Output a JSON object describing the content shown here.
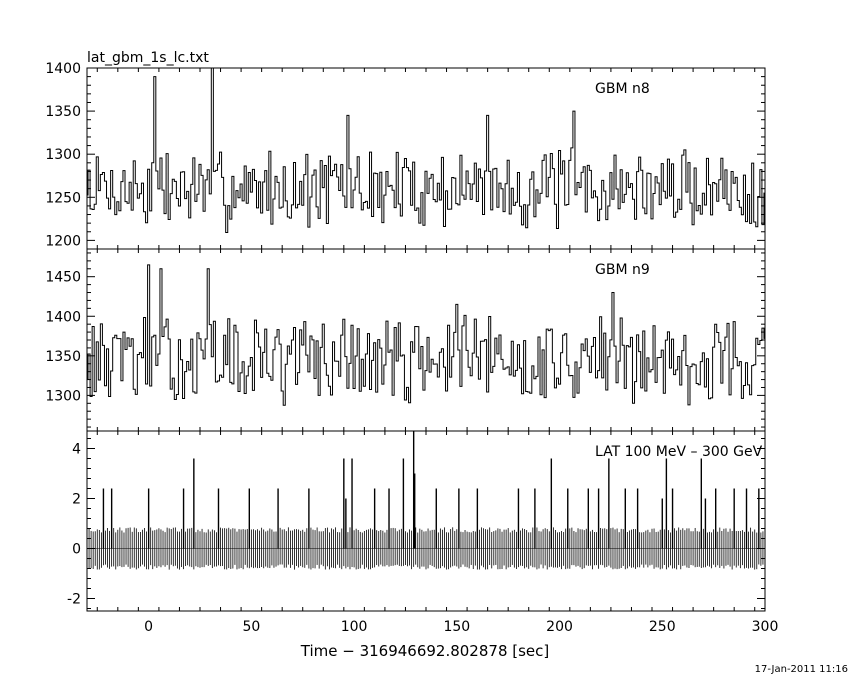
{
  "title": "lat_gbm_1s_lc.txt",
  "timestamp": "17-Jan-2011 11:16",
  "chart_data": {
    "type": "line",
    "xlabel": "Time − 316946692.802878 [sec]",
    "xlim": [
      -30,
      300
    ],
    "xticks": [
      0,
      50,
      100,
      150,
      200,
      250,
      300
    ],
    "panels": [
      {
        "name": "GBM n8",
        "ylim": [
          1190,
          1400
        ],
        "yticks": [
          1200,
          1250,
          1300,
          1350,
          1400
        ],
        "noise": {
          "base": 1260,
          "amp": 38,
          "seed": 7
        },
        "peaks": [
          {
            "x": 3,
            "value": 1390
          },
          {
            "x": 31,
            "value": 1400
          },
          {
            "x": 207,
            "value": 1350
          },
          {
            "x": 165,
            "value": 1345
          },
          {
            "x": 97,
            "value": 1345
          }
        ]
      },
      {
        "name": "GBM n9",
        "ylim": [
          1255,
          1485
        ],
        "yticks": [
          1300,
          1350,
          1400,
          1450
        ],
        "noise": {
          "base": 1345,
          "amp": 45,
          "seed": 13
        },
        "peaks": [
          {
            "x": 0,
            "value": 1465
          },
          {
            "x": 6,
            "value": 1460
          },
          {
            "x": 29,
            "value": 1460
          },
          {
            "x": 226,
            "value": 1430
          },
          {
            "x": 150,
            "value": 1415
          }
        ]
      },
      {
        "name": "LAT 100 MeV – 300 GeV",
        "ylim": [
          -2.5,
          4.7
        ],
        "yticks": [
          -2,
          0,
          2,
          4
        ],
        "bins": {
          "start": -30,
          "end": 300,
          "step": 1,
          "band": [
            -0.85,
            0.85
          ],
          "seed": 29
        },
        "spikes": [
          {
            "x": 129,
            "value": 4.7
          },
          {
            "x": 129.5,
            "value": 3.0
          },
          {
            "x": 22,
            "value": 3.6
          },
          {
            "x": 95,
            "value": 3.6
          },
          {
            "x": 99,
            "value": 3.6
          },
          {
            "x": 124,
            "value": 3.6
          },
          {
            "x": 196,
            "value": 3.6
          },
          {
            "x": 224,
            "value": 3.6
          },
          {
            "x": 252,
            "value": 3.6
          },
          {
            "x": 269,
            "value": 3.6
          },
          {
            "x": -22,
            "value": 2.4
          },
          {
            "x": -18,
            "value": 2.4
          },
          {
            "x": 0,
            "value": 2.4
          },
          {
            "x": 17,
            "value": 2.4
          },
          {
            "x": 34,
            "value": 2.4
          },
          {
            "x": 49,
            "value": 2.4
          },
          {
            "x": 63,
            "value": 2.4
          },
          {
            "x": 78,
            "value": 2.4
          },
          {
            "x": 96,
            "value": 2.0
          },
          {
            "x": 110,
            "value": 2.4
          },
          {
            "x": 117,
            "value": 2.4
          },
          {
            "x": 140,
            "value": 2.4
          },
          {
            "x": 151,
            "value": 2.4
          },
          {
            "x": 160,
            "value": 2.4
          },
          {
            "x": 180,
            "value": 2.4
          },
          {
            "x": 188,
            "value": 2.4
          },
          {
            "x": 204,
            "value": 2.4
          },
          {
            "x": 214,
            "value": 2.4
          },
          {
            "x": 219,
            "value": 2.4
          },
          {
            "x": 232,
            "value": 2.4
          },
          {
            "x": 238,
            "value": 2.4
          },
          {
            "x": 250,
            "value": 2.0
          },
          {
            "x": 255,
            "value": 2.4
          },
          {
            "x": 271,
            "value": 2.0
          },
          {
            "x": 276,
            "value": 2.4
          },
          {
            "x": 285,
            "value": 2.4
          },
          {
            "x": 291,
            "value": 2.4
          },
          {
            "x": 297,
            "value": 2.4
          }
        ]
      }
    ]
  }
}
